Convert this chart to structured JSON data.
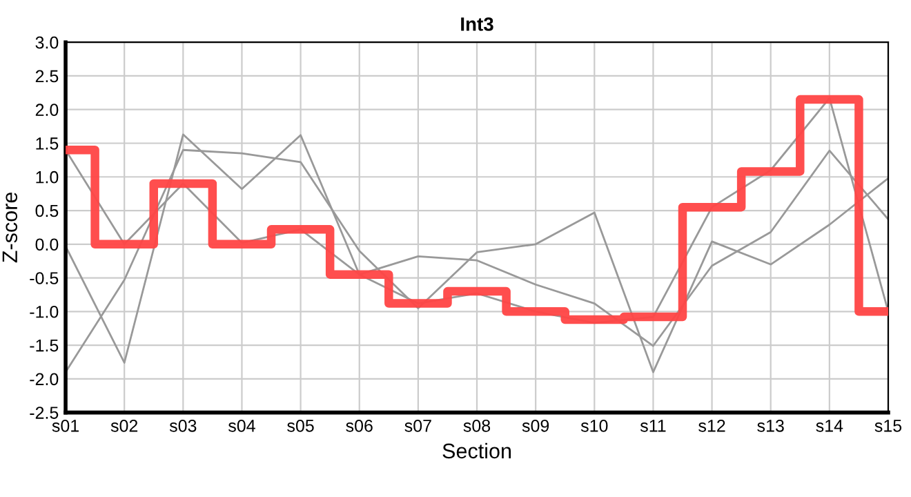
{
  "chart_data": {
    "type": "line",
    "title": "Int3",
    "xlabel": "Section",
    "ylabel": "Z-score",
    "categories": [
      "s01",
      "s02",
      "s03",
      "s04",
      "s05",
      "s06",
      "s07",
      "s08",
      "s09",
      "s10",
      "s11",
      "s12",
      "s13",
      "s14",
      "s15"
    ],
    "series": [
      {
        "color": "#999999",
        "values": [
          1.4,
          0.0,
          0.9,
          0.02,
          0.22,
          -0.45,
          -0.88,
          -0.73,
          -1.0,
          -1.17,
          -1.08,
          0.55,
          1.1,
          2.17,
          -1.0
        ]
      },
      {
        "color": "#999999",
        "values": [
          -0.03,
          -1.76,
          1.63,
          0.82,
          1.62,
          -0.45,
          -0.18,
          -0.24,
          -0.6,
          -0.88,
          -1.51,
          -0.32,
          0.18,
          1.39,
          0.37
        ]
      },
      {
        "color": "#999999",
        "values": [
          -1.9,
          -0.53,
          1.4,
          1.35,
          1.22,
          -0.1,
          -0.95,
          -0.12,
          0.0,
          0.47,
          -1.9,
          0.04,
          -0.3,
          0.29,
          0.98
        ]
      },
      {
        "type": "step",
        "color": "#ff4444",
        "values": [
          1.4,
          0.0,
          0.9,
          0.0,
          0.22,
          -0.45,
          -0.88,
          -0.7,
          -1.0,
          -1.12,
          -1.08,
          0.55,
          1.08,
          2.15,
          -1.0
        ]
      }
    ],
    "ylim": [
      -2.5,
      3.0
    ],
    "yticks": [
      {
        "value": -2.5,
        "label": "-2.5"
      },
      {
        "value": -2.0,
        "label": "-2.0"
      },
      {
        "value": -1.5,
        "label": "-1.5"
      },
      {
        "value": -1.0,
        "label": "-1.0"
      },
      {
        "value": -0.5,
        "label": "-0.5"
      },
      {
        "value": 0.0,
        "label": "0.0"
      },
      {
        "value": 0.5,
        "label": "0.5"
      },
      {
        "value": 1.0,
        "label": "1.0"
      },
      {
        "value": 1.5,
        "label": "1.5"
      },
      {
        "value": 2.0,
        "label": "2.0"
      },
      {
        "value": 2.5,
        "label": "2.5"
      },
      {
        "value": 3.0,
        "label": "3.0"
      }
    ],
    "grid": true,
    "legend": false,
    "marker": "none",
    "line_style": "solid"
  }
}
